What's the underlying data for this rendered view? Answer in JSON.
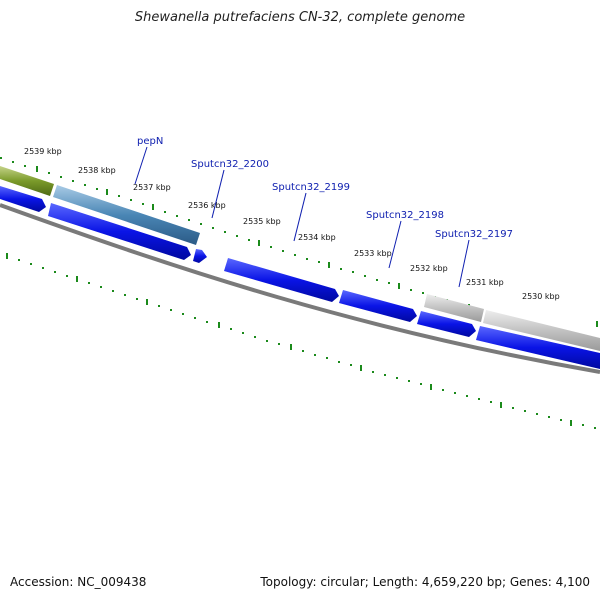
{
  "title": "Shewanella putrefaciens CN-32, complete genome",
  "footer": {
    "accession": "Accession: NC_009438",
    "stats": "Topology: circular; Length: 4,659,220 bp; Genes: 4,100"
  },
  "colors": {
    "background": "#ffffff",
    "backbone": "#7a7a7a",
    "tick_marks": "#1b8a1b",
    "gene_blue": "#0a14e6",
    "gene_olive": "#7a9a2a",
    "gene_steel": "#4a86b5",
    "gene_grey": "#c2c2c2",
    "label_text": "#1020b0"
  },
  "kbp_labels": [
    "2539 kbp",
    "2538 kbp",
    "2537 kbp",
    "2536 kbp",
    "2535 kbp",
    "2534 kbp",
    "2533 kbp",
    "2532 kbp",
    "2531 kbp",
    "2530 kbp"
  ],
  "gene_labels": [
    "pepN",
    "Sputcn32_2200",
    "Sputcn32_2199",
    "Sputcn32_2198",
    "Sputcn32_2197"
  ]
}
